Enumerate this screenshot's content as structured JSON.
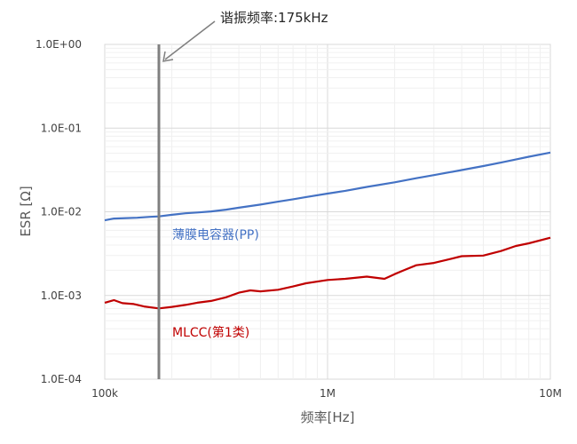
{
  "chart_data": {
    "type": "line",
    "xlabel": "频率[Hz]",
    "ylabel": "ESR [Ω]",
    "x_scale": "log",
    "y_scale": "log",
    "xlim": [
      100000,
      10000000
    ],
    "ylim": [
      0.0001,
      1.0
    ],
    "x_ticks": [
      {
        "value": 100000,
        "label": "100k"
      },
      {
        "value": 1000000,
        "label": "1M"
      },
      {
        "value": 10000000,
        "label": "10M"
      }
    ],
    "y_ticks": [
      {
        "value": 1.0,
        "label": "1.0E+00"
      },
      {
        "value": 0.1,
        "label": "1.0E-01"
      },
      {
        "value": 0.01,
        "label": "1.0E-02"
      },
      {
        "value": 0.001,
        "label": "1.0E-03"
      },
      {
        "value": 0.0001,
        "label": "1.0E-04"
      }
    ],
    "grid": true,
    "series": [
      {
        "name": "薄膜电容器(PP)",
        "color": "#4472c4",
        "x": [
          100000,
          110000,
          125000,
          140000,
          160000,
          175000,
          200000,
          230000,
          260000,
          300000,
          350000,
          400000,
          500000,
          600000,
          700000,
          800000,
          1000000,
          1200000,
          1500000,
          2000000,
          2500000,
          3000000,
          4000000,
          5000000,
          6000000,
          7000000,
          8000000,
          10000000
        ],
        "y": [
          0.0079,
          0.0083,
          0.0084,
          0.0085,
          0.0087,
          0.0088,
          0.0092,
          0.0096,
          0.0098,
          0.0101,
          0.0106,
          0.0112,
          0.0122,
          0.0132,
          0.0141,
          0.015,
          0.0165,
          0.0178,
          0.0198,
          0.0225,
          0.0252,
          0.0274,
          0.0315,
          0.0352,
          0.0387,
          0.0422,
          0.0455,
          0.051
        ]
      },
      {
        "name": "MLCC(第1类)",
        "color": "#c00000",
        "x": [
          100000,
          110000,
          120000,
          135000,
          150000,
          175000,
          200000,
          230000,
          260000,
          300000,
          350000,
          400000,
          450000,
          500000,
          600000,
          700000,
          800000,
          1000000,
          1200000,
          1500000,
          1800000,
          2000000,
          2200000,
          2500000,
          3000000,
          3500000,
          4000000,
          5000000,
          6000000,
          7000000,
          8000000,
          10000000
        ],
        "y": [
          0.00082,
          0.00088,
          0.00081,
          0.00079,
          0.00074,
          0.0007,
          0.00073,
          0.00077,
          0.00082,
          0.00086,
          0.00095,
          0.00108,
          0.00115,
          0.00112,
          0.00117,
          0.00128,
          0.0014,
          0.00153,
          0.00158,
          0.00168,
          0.00158,
          0.0018,
          0.002,
          0.0023,
          0.00245,
          0.0027,
          0.00295,
          0.003,
          0.0034,
          0.0039,
          0.0042,
          0.0049
        ]
      }
    ],
    "vertical_marker": {
      "x": 175000,
      "color": "#808080"
    },
    "annotations": {
      "resonance": "谐振频率:175kHz",
      "film_label": "薄膜电容器(PP)",
      "mlcc_label": "MLCC(第1类)"
    }
  }
}
